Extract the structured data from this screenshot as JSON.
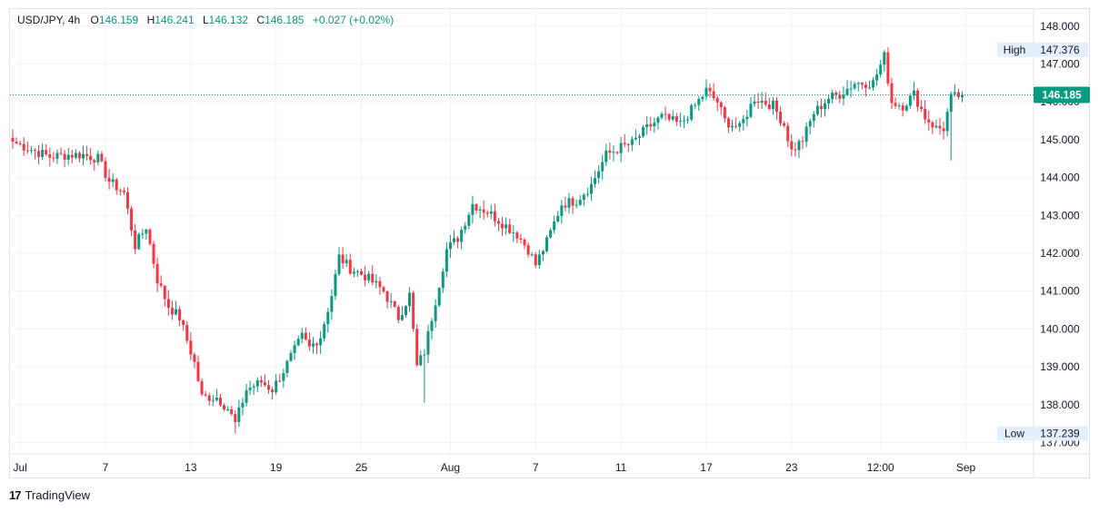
{
  "header": {
    "symbol": "USD/JPY, 4h",
    "open_label": "O",
    "open": "146.159",
    "high_label": "H",
    "high": "146.241",
    "low_label": "L",
    "low": "146.132",
    "close_label": "C",
    "close": "146.185",
    "change": "+0.027 (+0.02%)"
  },
  "branding": {
    "logo": "17",
    "name": "TradingView"
  },
  "colors": {
    "up": "#089981",
    "down": "#f23645",
    "grid": "#f0f3fa",
    "axis_text": "#131722",
    "price_tag": "#089981"
  },
  "chart_data": {
    "type": "candlestick",
    "title": "USD/JPY, 4h",
    "ylim": [
      136.7,
      148.45
    ],
    "y_ticks": [
      "148.000",
      "147.000",
      "146.000",
      "145.000",
      "144.000",
      "143.000",
      "142.000",
      "141.000",
      "140.000",
      "139.000",
      "138.000",
      "137.000"
    ],
    "x_ticks": [
      {
        "label": "Jul",
        "index": 2
      },
      {
        "label": "7",
        "index": 25
      },
      {
        "label": "13",
        "index": 48
      },
      {
        "label": "19",
        "index": 71
      },
      {
        "label": "25",
        "index": 94
      },
      {
        "label": "Aug",
        "index": 118
      },
      {
        "label": "7",
        "index": 141
      },
      {
        "label": "11",
        "index": 164
      },
      {
        "label": "17",
        "index": 187
      },
      {
        "label": "23",
        "index": 210
      },
      {
        "label": "12:00",
        "index": 234
      },
      {
        "label": "Sep",
        "index": 257
      }
    ],
    "high_marker": {
      "label": "High",
      "value": "147.376"
    },
    "low_marker": {
      "label": "Low",
      "value": "137.239"
    },
    "last_price": "146.185",
    "waypoints": [
      [
        0,
        144.95
      ],
      [
        6,
        144.7
      ],
      [
        10,
        144.55
      ],
      [
        15,
        144.6
      ],
      [
        19,
        144.6
      ],
      [
        23,
        144.5
      ],
      [
        26,
        143.9
      ],
      [
        30,
        143.6
      ],
      [
        33,
        142.2
      ],
      [
        36,
        142.7
      ],
      [
        39,
        141.3
      ],
      [
        42,
        140.6
      ],
      [
        45,
        140.3
      ],
      [
        49,
        139.1
      ],
      [
        51,
        138.2
      ],
      [
        55,
        138.2
      ],
      [
        58,
        137.9
      ],
      [
        60,
        137.5
      ],
      [
        63,
        138.4
      ],
      [
        67,
        138.6
      ],
      [
        70,
        138.4
      ],
      [
        73,
        138.9
      ],
      [
        78,
        139.8
      ],
      [
        80,
        139.5
      ],
      [
        83,
        139.8
      ],
      [
        86,
        140.9
      ],
      [
        88,
        141.9
      ],
      [
        91,
        141.6
      ],
      [
        95,
        141.4
      ],
      [
        100,
        141.0
      ],
      [
        104,
        140.3
      ],
      [
        107,
        140.9
      ],
      [
        109,
        139.0
      ],
      [
        111,
        139.4
      ],
      [
        115,
        141.2
      ],
      [
        117,
        142.1
      ],
      [
        120,
        142.4
      ],
      [
        124,
        143.3
      ],
      [
        128,
        143.1
      ],
      [
        132,
        142.8
      ],
      [
        136,
        142.5
      ],
      [
        139,
        142.1
      ],
      [
        141,
        141.7
      ],
      [
        144,
        142.3
      ],
      [
        148,
        143.3
      ],
      [
        152,
        143.4
      ],
      [
        156,
        143.8
      ],
      [
        160,
        144.6
      ],
      [
        164,
        144.8
      ],
      [
        167,
        144.9
      ],
      [
        171,
        145.3
      ],
      [
        175,
        145.6
      ],
      [
        180,
        145.4
      ],
      [
        184,
        145.9
      ],
      [
        187,
        146.3
      ],
      [
        190,
        146.0
      ],
      [
        192,
        145.5
      ],
      [
        196,
        145.3
      ],
      [
        200,
        146.1
      ],
      [
        205,
        145.9
      ],
      [
        208,
        145.4
      ],
      [
        210,
        144.7
      ],
      [
        213,
        145.0
      ],
      [
        216,
        145.7
      ],
      [
        220,
        146.1
      ],
      [
        223,
        146.2
      ],
      [
        227,
        146.5
      ],
      [
        232,
        146.5
      ],
      [
        235,
        147.2
      ],
      [
        237,
        146.0
      ],
      [
        240,
        145.9
      ],
      [
        243,
        146.2
      ],
      [
        246,
        145.6
      ],
      [
        249,
        145.3
      ],
      [
        251,
        145.3
      ],
      [
        253,
        146.1
      ],
      [
        256,
        146.185
      ]
    ]
  }
}
